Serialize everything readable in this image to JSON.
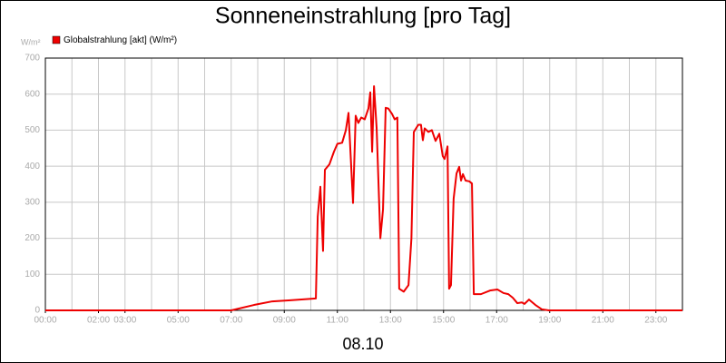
{
  "chart_data": {
    "type": "line",
    "title": "Sonneneinstrahlung [pro Tag]",
    "subtitle": "08.10",
    "y_label": "W/m²",
    "series": [
      {
        "name": "Globalstrahlung [akt] (W/m²)",
        "color": "#ee0000",
        "x": [
          0,
          7.0,
          7.86,
          8.55,
          9.23,
          10.19,
          10.26,
          10.36,
          10.46,
          10.53,
          10.7,
          10.87,
          11.0,
          11.18,
          11.32,
          11.42,
          11.59,
          11.69,
          11.79,
          11.9,
          12.03,
          12.17,
          12.24,
          12.31,
          12.38,
          12.48,
          12.62,
          12.72,
          12.82,
          12.92,
          13.06,
          13.16,
          13.26,
          13.33,
          13.5,
          13.68,
          13.79,
          13.88,
          14.05,
          14.15,
          14.22,
          14.29,
          14.43,
          14.56,
          14.7,
          14.84,
          14.97,
          15.04,
          15.15,
          15.21,
          15.28,
          15.38,
          15.49,
          15.59,
          15.66,
          15.73,
          15.83,
          15.97,
          16.07,
          16.14,
          16.41,
          16.75,
          17.03,
          17.26,
          17.44,
          17.61,
          17.78,
          17.95,
          18.05,
          18.22,
          18.46,
          18.7,
          18.97,
          24
        ],
        "values": [
          0,
          0,
          15,
          25,
          28,
          33,
          260,
          343,
          165,
          390,
          405,
          440,
          462,
          465,
          500,
          548,
          298,
          540,
          520,
          535,
          530,
          560,
          605,
          440,
          622,
          505,
          200,
          280,
          562,
          560,
          545,
          530,
          535,
          60,
          52,
          70,
          200,
          495,
          515,
          515,
          472,
          505,
          495,
          500,
          470,
          490,
          428,
          420,
          455,
          60,
          70,
          310,
          380,
          398,
          360,
          378,
          360,
          358,
          352,
          45,
          45,
          55,
          58,
          48,
          45,
          35,
          20,
          22,
          18,
          30,
          15,
          3,
          0,
          0
        ]
      }
    ],
    "xlim": [
      0,
      24
    ],
    "xticks": [
      {
        "value": 0,
        "label": "00:00"
      },
      {
        "value": 2,
        "label": "02:00"
      },
      {
        "value": 3,
        "label": "03:00"
      },
      {
        "value": 5,
        "label": "05:00"
      },
      {
        "value": 7,
        "label": "07:00"
      },
      {
        "value": 9,
        "label": "09:00"
      },
      {
        "value": 11,
        "label": "11:00"
      },
      {
        "value": 13,
        "label": "13:00"
      },
      {
        "value": 15,
        "label": "15:00"
      },
      {
        "value": 17,
        "label": "17:00"
      },
      {
        "value": 19,
        "label": "19:00"
      },
      {
        "value": 21,
        "label": "21:00"
      },
      {
        "value": 23,
        "label": "23:00"
      }
    ],
    "xgrid": [
      0,
      1,
      2,
      3,
      4,
      5,
      6,
      7,
      8,
      9,
      10,
      11,
      12,
      13,
      14,
      15,
      16,
      17,
      18,
      19,
      20,
      21,
      22,
      23,
      24
    ],
    "ylim": [
      0,
      700
    ],
    "yticks": [
      0,
      100,
      200,
      300,
      400,
      500,
      600,
      700
    ],
    "grid": true
  }
}
